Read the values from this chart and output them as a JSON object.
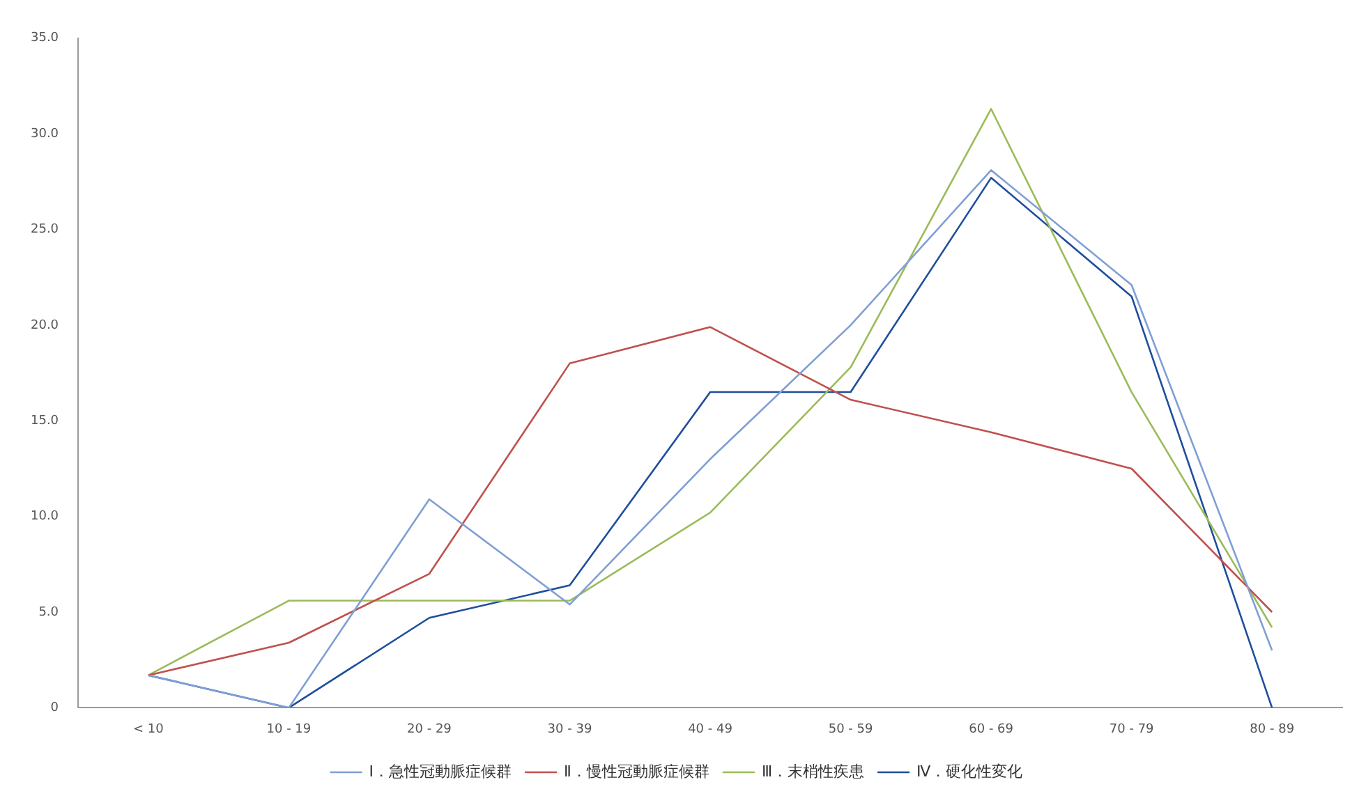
{
  "chart_data": {
    "type": "line",
    "categories": [
      "< 10",
      "10 - 19",
      "20 - 29",
      "30 - 39",
      "40 - 49",
      "50 - 59",
      "60 - 69",
      "70 - 79",
      "80 - 89"
    ],
    "series": [
      {
        "name": "Ⅰ．急性冠動脈症候群",
        "color": "#7f9fd4",
        "values": [
          1.7,
          0,
          10.9,
          5.4,
          13.0,
          20.0,
          28.1,
          22.1,
          3.0
        ]
      },
      {
        "name": "Ⅱ．慢性冠動脈症候群",
        "color": "#c0504d",
        "values": [
          1.7,
          3.4,
          7.0,
          18.0,
          19.9,
          16.1,
          14.4,
          12.5,
          5.0
        ]
      },
      {
        "name": "Ⅲ．末梢性疾患",
        "color": "#9bbb59",
        "values": [
          1.7,
          5.6,
          5.6,
          5.6,
          10.2,
          17.8,
          31.3,
          16.5,
          4.2
        ]
      },
      {
        "name": "Ⅳ．硬化性変化",
        "color": "#1f4e9c",
        "values": [
          1.7,
          0,
          4.7,
          6.4,
          16.5,
          16.5,
          27.7,
          21.5,
          0
        ]
      }
    ],
    "ylim": [
      0,
      35
    ],
    "yticks": [
      {
        "value": 0,
        "label": "0"
      },
      {
        "value": 5,
        "label": "5.0"
      },
      {
        "value": 10,
        "label": "10.0"
      },
      {
        "value": 15,
        "label": "15.0"
      },
      {
        "value": 20,
        "label": "20.0"
      },
      {
        "value": 25,
        "label": "25.0"
      },
      {
        "value": 30,
        "label": "30.0"
      },
      {
        "value": 35,
        "label": "35.0"
      }
    ],
    "grid": false,
    "legend": "bottom",
    "marker": "none",
    "line_style": "solid"
  }
}
